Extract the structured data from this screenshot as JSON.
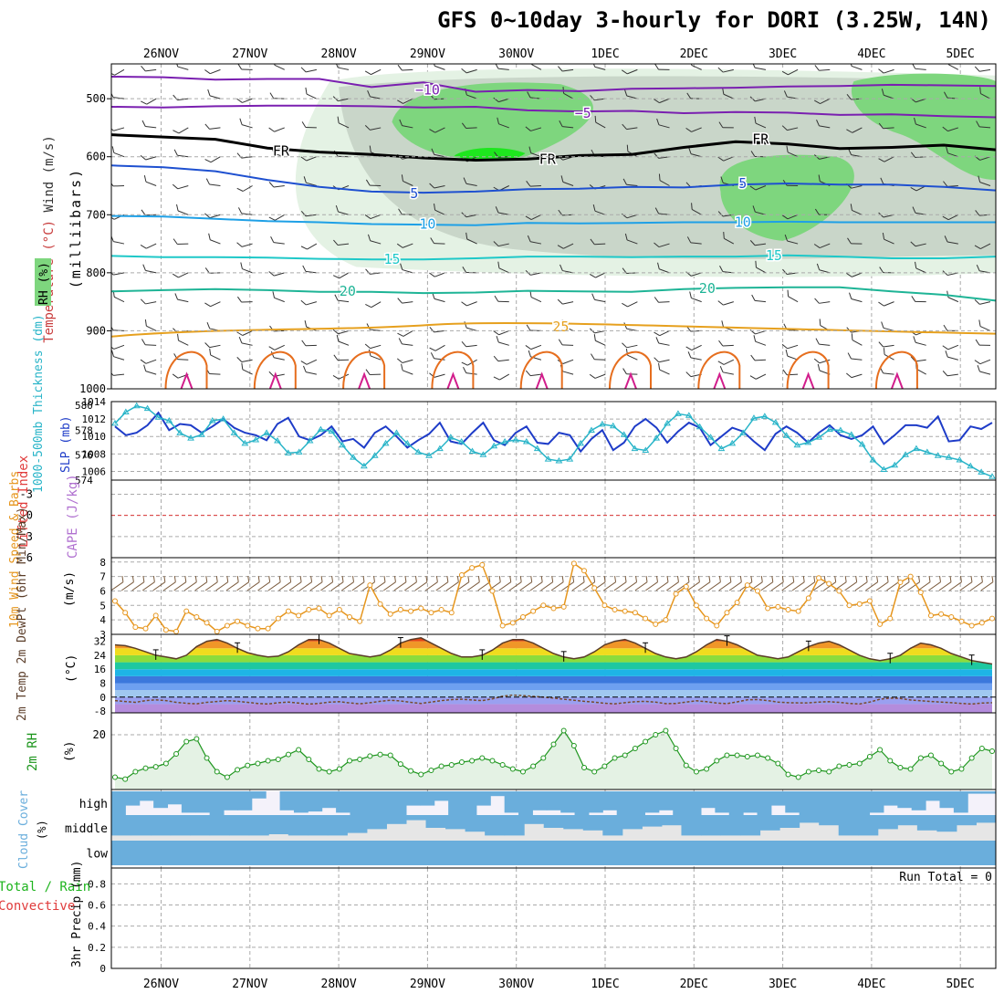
{
  "title": "GFS 0~10day 3-hourly for DORI (3.25W, 14N)",
  "dates": [
    "26NOV",
    "27NOV",
    "28NOV",
    "29NOV",
    "30NOV",
    "1DEC",
    "2DEC",
    "3DEC",
    "4DEC",
    "5DEC"
  ],
  "colors": {
    "sounding_rh_light": "#e4f2e4",
    "sounding_rh_mid": "#c9d6c9",
    "sounding_rh_green": "#7ed67e",
    "sounding_rh_bright": "#1ee61e",
    "temp_m10": "#7a1fb0",
    "temp_fr": "#000000",
    "temp_5": "#1e50d0",
    "temp_10": "#1ea0e6",
    "temp_15": "#1ec8c8",
    "temp_20": "#1eb496",
    "temp_25": "#e6a01e",
    "temp_30": "#e66e1e",
    "temp_35": "#d21e8c",
    "thickness": "#1e3cc8",
    "slp": "#28b4c8",
    "lifted_index": "#e03c3c",
    "wind10": "#e6961e",
    "barbs": "#7a5a3c",
    "rh2m": "#1e961e",
    "cloud": "#6aaedc",
    "grid": "#aaaaaa"
  },
  "chart_data": [
    {
      "type": "contour",
      "panel": "upper-air sounding",
      "ylabel_parts": [
        "Wind (m/s)",
        "Temperature (°C)",
        "RH (%)"
      ],
      "units": "(milliibars)",
      "yticks": [
        500,
        600,
        700,
        800,
        900,
        1000
      ],
      "contour_labels": [
        {
          "text": "−10",
          "day": 3.0,
          "p": 485
        },
        {
          "text": "−5",
          "day": 4.75,
          "p": 525
        },
        {
          "text": "FR",
          "day": 1.35,
          "p": 590
        },
        {
          "text": "FR",
          "day": 4.35,
          "p": 604
        },
        {
          "text": "FR",
          "day": 6.75,
          "p": 570
        },
        {
          "text": "5",
          "day": 2.85,
          "p": 663
        },
        {
          "text": "5",
          "day": 6.55,
          "p": 646
        },
        {
          "text": "10",
          "day": 3.0,
          "p": 716
        },
        {
          "text": "10",
          "day": 6.55,
          "p": 713
        },
        {
          "text": "15",
          "day": 2.6,
          "p": 777
        },
        {
          "text": "15",
          "day": 6.9,
          "p": 770
        },
        {
          "text": "20",
          "day": 2.1,
          "p": 832
        },
        {
          "text": "20",
          "day": 6.15,
          "p": 827
        },
        {
          "text": "25",
          "day": 4.5,
          "p": 893
        }
      ],
      "series": [
        {
          "label": "−10",
          "values": [
            462,
            463,
            467,
            466,
            466,
            480,
            472,
            488,
            485,
            487,
            483,
            482,
            481,
            479,
            478,
            476,
            477,
            478
          ]
        },
        {
          "label": "−5",
          "values": [
            514,
            515,
            513,
            512,
            512,
            513,
            515,
            514,
            520,
            522,
            521,
            525,
            523,
            524,
            528,
            527,
            530,
            532
          ]
        },
        {
          "label": "FR",
          "values": [
            562,
            566,
            570,
            585,
            592,
            596,
            602,
            606,
            604,
            598,
            596,
            584,
            574,
            578,
            586,
            584,
            580,
            588
          ]
        },
        {
          "label": "5",
          "values": [
            615,
            618,
            625,
            640,
            652,
            660,
            662,
            660,
            656,
            655,
            652,
            653,
            648,
            646,
            648,
            648,
            652,
            658
          ]
        },
        {
          "label": "10",
          "values": [
            702,
            703,
            707,
            711,
            713,
            716,
            717,
            718,
            714,
            715,
            714,
            713,
            713,
            712,
            713,
            713,
            713,
            713
          ]
        },
        {
          "label": "15",
          "values": [
            771,
            773,
            773,
            774,
            776,
            777,
            777,
            775,
            772,
            772,
            773,
            772,
            772,
            770,
            772,
            775,
            775,
            772
          ]
        },
        {
          "label": "20",
          "values": [
            832,
            830,
            828,
            830,
            833,
            833,
            835,
            834,
            831,
            832,
            833,
            828,
            826,
            825,
            825,
            832,
            838,
            848
          ]
        }
      ]
    },
    {
      "type": "line",
      "panel": "thickness and SLP",
      "ylabel_left": "1000-500mb Thickness (dm)",
      "ylabel_right": "SLP (mb)",
      "left_ticks": [
        574,
        576,
        578,
        580
      ],
      "right_ticks": [
        1006,
        1008,
        1010,
        1012,
        1014
      ],
      "ylim_left": [
        574,
        580
      ],
      "ylim_right": [
        1005,
        1014
      ],
      "series": [
        {
          "label": "1000-500mb Thickness",
          "axis": "left",
          "values": [
            578.3,
            577.6,
            577.8,
            578.4,
            579.4,
            578.0,
            578.5,
            578.4,
            577.8,
            578.3,
            578.9,
            578.2,
            577.8,
            577.6,
            577.2,
            578.5,
            579.0,
            577.5,
            577.2,
            577.6,
            578.3,
            577.1,
            577.3,
            576.6,
            577.8,
            578.3,
            577.5,
            576.6,
            577.2,
            577.7,
            578.6,
            577.1,
            576.9,
            577.8,
            578.6,
            577.2,
            576.8,
            577.8,
            578.3,
            577.0,
            576.9,
            577.8,
            577.6,
            576.3,
            577.3,
            578.0,
            576.4,
            577.0,
            578.3,
            578.9,
            578.2,
            577.0,
            577.9,
            578.6,
            578.2,
            576.8,
            577.5,
            578.2,
            577.9,
            577.1,
            576.4,
            577.7,
            578.3,
            577.8,
            577.0,
            577.8,
            578.4,
            577.6,
            577.3,
            577.6,
            578.3,
            576.9,
            577.6,
            578.4,
            578.4,
            578.2,
            579.1,
            577.1,
            577.2,
            578.3,
            578.1,
            578.6
          ]
        },
        {
          "label": "SLP",
          "axis": "right",
          "values": [
            1011.5,
            1012.8,
            1013.5,
            1013.2,
            1012.2,
            1011.8,
            1010.4,
            1009.8,
            1010.2,
            1011.8,
            1012.0,
            1010.4,
            1009.2,
            1009.6,
            1010.4,
            1009.5,
            1008.1,
            1008.2,
            1009.5,
            1010.8,
            1010.6,
            1009.0,
            1007.6,
            1006.6,
            1007.8,
            1009.2,
            1010.4,
            1009.2,
            1008.2,
            1007.8,
            1008.6,
            1009.9,
            1009.4,
            1008.3,
            1007.9,
            1008.9,
            1009.4,
            1009.6,
            1009.4,
            1008.6,
            1007.4,
            1007.2,
            1007.4,
            1009.2,
            1010.7,
            1011.4,
            1011.2,
            1010.2,
            1008.6,
            1008.4,
            1009.8,
            1011.5,
            1012.6,
            1012.4,
            1011.1,
            1009.9,
            1008.6,
            1009.2,
            1010.4,
            1012.1,
            1012.3,
            1011.6,
            1010.1,
            1009.0,
            1009.3,
            1009.9,
            1010.8,
            1010.7,
            1010.2,
            1009.1,
            1007.3,
            1006.2,
            1006.7,
            1007.9,
            1008.6,
            1008.2,
            1007.8,
            1007.6,
            1007.3,
            1006.6,
            1005.9,
            1005.4
          ]
        }
      ]
    },
    {
      "type": "line",
      "panel": "stability",
      "ylabel_parts": [
        "Lifted Index",
        "CAPE (J/kg)"
      ],
      "yticks": [
        "-3",
        "0",
        "3",
        "6"
      ],
      "ylim": [
        6,
        -5
      ],
      "series": [
        {
          "label": "Lifted Index reference",
          "values": [
            0
          ]
        }
      ]
    },
    {
      "type": "line",
      "panel": "10m wind",
      "ylabel": "10m Wind Speed & Barbs",
      "units": "(m/s)",
      "yticks": [
        3,
        4,
        5,
        6,
        7,
        8
      ],
      "ylim": [
        3,
        8.3
      ],
      "series": [
        {
          "label": "10m Wind Speed",
          "values": [
            5.3,
            4.5,
            3.5,
            3.4,
            4.3,
            3.3,
            3.2,
            4.6,
            4.2,
            3.8,
            3.2,
            3.6,
            3.9,
            3.6,
            3.4,
            3.4,
            4.1,
            4.6,
            4.3,
            4.7,
            4.8,
            4.3,
            4.7,
            4.2,
            3.9,
            6.4,
            5.1,
            4.4,
            4.7,
            4.6,
            4.8,
            4.5,
            4.7,
            4.5,
            7.1,
            7.6,
            7.8,
            6.0,
            3.6,
            3.8,
            4.2,
            4.6,
            5.0,
            4.8,
            4.9,
            7.9,
            7.4,
            6.2,
            5.0,
            4.7,
            4.6,
            4.5,
            4.1,
            3.7,
            4.0,
            5.8,
            6.3,
            5.0,
            4.1,
            3.6,
            4.5,
            5.2,
            6.4,
            6.0,
            4.8,
            4.9,
            4.7,
            4.6,
            5.5,
            6.9,
            6.5,
            6.0,
            5.0,
            5.1,
            5.3,
            3.7,
            4.1,
            6.6,
            7.0,
            5.9,
            4.3,
            4.4,
            4.2,
            3.9,
            3.6,
            3.8,
            4.1
          ]
        }
      ]
    },
    {
      "type": "area",
      "panel": "2m temperature",
      "ylabel": "2m Temp 2m DewPt (6hr Min/Max)",
      "units": "(°C)",
      "yticks": [
        -8,
        0,
        8,
        16,
        24,
        32
      ],
      "ylim": [
        -9,
        36
      ],
      "series": [
        {
          "label": "2m Temp",
          "values": [
            30,
            29.5,
            28,
            26,
            24,
            23,
            22,
            24,
            29,
            32,
            33,
            31,
            28,
            25.5,
            24,
            23,
            23.5,
            26,
            30,
            33,
            33,
            31,
            28,
            25,
            24,
            23,
            24,
            27,
            31,
            33,
            34,
            31,
            28,
            25,
            23,
            23,
            24,
            27,
            31,
            33,
            33,
            31,
            28,
            25,
            23,
            22,
            23,
            26,
            30,
            32,
            33,
            31,
            28,
            25,
            23,
            22,
            23,
            26,
            30,
            33,
            32,
            30,
            27,
            24,
            23,
            22,
            23,
            26,
            29,
            31,
            32,
            30,
            27,
            24,
            22,
            21,
            22,
            24,
            28,
            31,
            30,
            28,
            25,
            23,
            21,
            20,
            19
          ]
        },
        {
          "label": "2m DewPt",
          "values": [
            -2,
            -2.5,
            -3,
            -2,
            -1.5,
            -2,
            -3,
            -3.5,
            -3.8,
            -3,
            -2.5,
            -2,
            -2.4,
            -3,
            -3.6,
            -3.9,
            -3.2,
            -2.8,
            -3.4,
            -4,
            -3.6,
            -2.9,
            -2.6,
            -3.3,
            -3.8,
            -3.2,
            -2.4,
            -1.8,
            -2.2,
            -3,
            -3.6,
            -2.8,
            -2,
            -1.4,
            -1.2,
            -1.6,
            -2,
            -1,
            0.5,
            1.2,
            0.9,
            0.4,
            0,
            -0.5,
            -1.2,
            -1.8,
            -2.4,
            -2.9,
            -3.5,
            -3.8,
            -3.2,
            -2.6,
            -2.4,
            -2.9,
            -3.7,
            -3.6,
            -2.8,
            -2.1,
            -2.6,
            -3.4,
            -3.7,
            -2.7,
            -1.5,
            -1.4,
            -2,
            -2.8,
            -3.2,
            -3.3,
            -3.3,
            -2.8,
            -2.6,
            -3,
            -3.6,
            -3.9,
            -2.8,
            -1.2,
            -0.5,
            -0.8,
            -1.6,
            -2.1,
            -2.5,
            -2.8,
            -3.2,
            -3.6,
            -3.9,
            -3.4,
            -3.2
          ]
        }
      ]
    },
    {
      "type": "area",
      "panel": "2m relative humidity",
      "ylabel": "2m RH",
      "units": "(%)",
      "yticks": [
        20
      ],
      "ylim": [
        0,
        28
      ],
      "series": [
        {
          "label": "2m RH",
          "values": [
            4.5,
            3.8,
            6.5,
            7.8,
            8.3,
            9.5,
            13,
            17.5,
            18.5,
            11.5,
            6.5,
            4.5,
            7.2,
            8.8,
            9.5,
            10.5,
            11,
            12.8,
            14.5,
            11,
            7.5,
            6.5,
            7.5,
            10.5,
            11,
            12.2,
            12.8,
            12.5,
            9.3,
            6.8,
            5.5,
            7,
            8.5,
            9,
            10,
            10.5,
            11.5,
            10.5,
            9,
            7.5,
            6.5,
            8.5,
            11.5,
            16.5,
            21.5,
            16,
            8,
            6.5,
            8.5,
            11.5,
            12.5,
            15,
            17.5,
            20,
            21.5,
            15,
            8.8,
            6.5,
            7.5,
            10.5,
            12.5,
            12.5,
            12,
            12.5,
            11.5,
            9.5,
            5.5,
            4.5,
            6.5,
            7,
            6.5,
            8.5,
            9,
            9.5,
            12,
            14.5,
            10.5,
            8,
            7.5,
            11.5,
            12.5,
            9.5,
            6.5,
            7.5,
            11.5,
            15,
            14
          ]
        }
      ]
    },
    {
      "type": "bar",
      "panel": "cloud cover",
      "ylabel": "Cloud Cover",
      "units": "(%)",
      "levels": [
        "high",
        "middle",
        "low"
      ],
      "series": [
        {
          "label": "high",
          "values": [
            1,
            0.6,
            0.4,
            0.7,
            0.55,
            0.9,
            0.9,
            1,
            0.8,
            0.8,
            0.3,
            0,
            0.8,
            0.9,
            0.85,
            0.7,
            0.9,
            1,
            1,
            1,
            1,
            0.6,
            0.6,
            0.4,
            1,
            1,
            0.6,
            0.2,
            0.9,
            1,
            0.8,
            0.8,
            0.9,
            1,
            0.9,
            0.8,
            1,
            1,
            0.9,
            0.8,
            1,
            1,
            0.7,
            0.9,
            1,
            0.9,
            1,
            0.6,
            0.9,
            1,
            1,
            1,
            1,
            1,
            0.9,
            0.6,
            0.7,
            0.8,
            0.4,
            0.7,
            0.9,
            0.1,
            0.1
          ]
        },
        {
          "label": "middle",
          "values": [
            0.8,
            0.8,
            0.8,
            0.8,
            0.8,
            0.8,
            0.8,
            0.8,
            0.75,
            0.8,
            0.8,
            0.8,
            0.7,
            0.55,
            0.35,
            0.2,
            0.5,
            0.55,
            0.65,
            0.8,
            0.8,
            0.35,
            0.5,
            0.55,
            0.6,
            0.8,
            0.55,
            0.45,
            0.4,
            0.8,
            0.8,
            0.8,
            0.8,
            0.6,
            0.5,
            0.3,
            0.4,
            0.8,
            0.8,
            0.55,
            0.4,
            0.6,
            0.65,
            0.4,
            0.3
          ]
        },
        {
          "label": "low",
          "values": [
            1
          ]
        }
      ]
    },
    {
      "type": "bar",
      "panel": "precipitation",
      "ylabel_parts": [
        "Total / Rain",
        "Convective"
      ],
      "units": "3hr Precip (mm)",
      "yticks": [
        0,
        0.2,
        0.4,
        0.6,
        0.8
      ],
      "ylim": [
        0,
        0.95
      ],
      "annotation": "Run Total = 0",
      "series": [
        {
          "label": "Total",
          "values": [
            0
          ]
        }
      ]
    }
  ]
}
